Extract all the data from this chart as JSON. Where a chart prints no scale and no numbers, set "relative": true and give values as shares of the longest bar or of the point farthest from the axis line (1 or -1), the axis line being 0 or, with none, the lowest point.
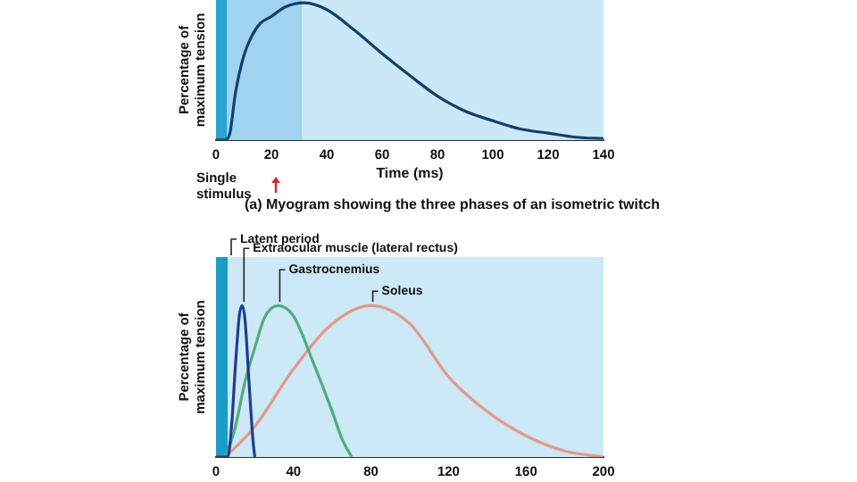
{
  "chart_data": [
    {
      "type": "line",
      "relative": true,
      "xlabel": "Time (ms)",
      "ylabel": "Percentage of maximum tension",
      "xlim": [
        0,
        140
      ],
      "xticks": [
        0,
        20,
        40,
        60,
        80,
        100,
        120,
        140
      ],
      "tick_labels": "x",
      "legend": false,
      "marker": "none",
      "bands": [
        {
          "axis": "x",
          "from": 0,
          "to": 4,
          "color": "#2aa3d3"
        },
        {
          "axis": "x",
          "from": 4,
          "to": 31,
          "color": "#9fd3ee"
        },
        {
          "axis": "x",
          "from": 31,
          "to": 140,
          "color": "#cbe8f7"
        }
      ],
      "series": [
        {
          "color": "#143f6b",
          "x": [
            0,
            3,
            5,
            7,
            10,
            13,
            16,
            20,
            25,
            32,
            40,
            50,
            60,
            70,
            80,
            90,
            100,
            110,
            120,
            130,
            140
          ],
          "values": [
            0,
            0,
            0.05,
            0.34,
            0.61,
            0.76,
            0.85,
            0.9,
            0.97,
            1,
            0.95,
            0.8,
            0.63,
            0.47,
            0.32,
            0.21,
            0.14,
            0.08,
            0.05,
            0.02,
            0.01
          ]
        }
      ],
      "annotations": [
        "Single stimulus",
        "(a) Myogram showing the three phases of an isometric twitch"
      ]
    },
    {
      "type": "line",
      "relative": true,
      "ylabel": "Percentage of maximum tension",
      "xlim": [
        0,
        200
      ],
      "xticks": [
        0,
        40,
        80,
        120,
        160,
        200
      ],
      "tick_labels": "x",
      "legend": false,
      "marker": "none",
      "bands": [
        {
          "axis": "x",
          "from": 0,
          "to": 6,
          "color": "#1a9cc8",
          "label": "Latent period"
        }
      ],
      "series": [
        {
          "name": "Extraocular muscle (lateral rectus)",
          "color": "#1c3f8f",
          "x": [
            0,
            6,
            8,
            10,
            12,
            13.5,
            15,
            17,
            19,
            20
          ],
          "values": [
            0,
            0,
            0.2,
            0.6,
            0.93,
            1,
            0.9,
            0.5,
            0.12,
            0
          ]
        },
        {
          "name": "Gastrocnemius",
          "color": "#4fae7c",
          "x": [
            5,
            10,
            15,
            20,
            25,
            32,
            40,
            50,
            60,
            65,
            70
          ],
          "values": [
            0,
            0.2,
            0.5,
            0.72,
            0.92,
            1,
            0.93,
            0.63,
            0.3,
            0.12,
            0
          ]
        },
        {
          "name": "Soleus",
          "color": "#e39a88",
          "x": [
            5,
            20,
            40,
            60,
            80,
            100,
            120,
            140,
            160,
            180,
            200
          ],
          "values": [
            0,
            0.2,
            0.58,
            0.88,
            1,
            0.88,
            0.53,
            0.3,
            0.14,
            0.04,
            0
          ]
        }
      ]
    }
  ]
}
